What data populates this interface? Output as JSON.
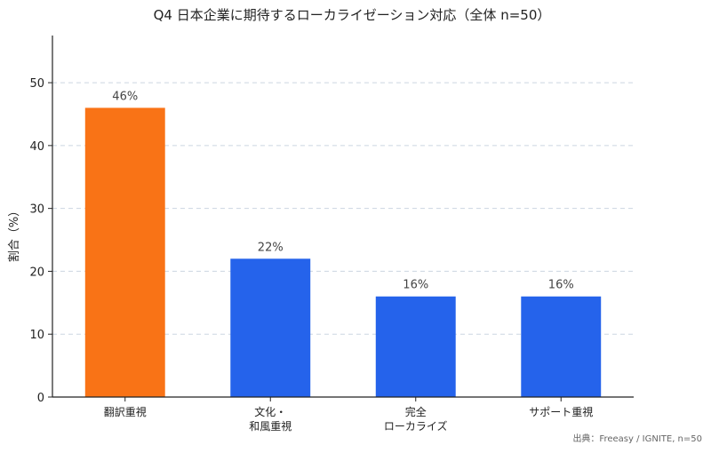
{
  "chart_data": {
    "type": "bar",
    "title": "Q4 日本企業に期待するローカライゼーション対応（全体 n=50）",
    "xlabel": "",
    "ylabel": "割合（%）",
    "categories": [
      [
        "翻訳重視"
      ],
      [
        "文化・",
        "和風重視"
      ],
      [
        "完全",
        "ローカライズ"
      ],
      [
        "サポート重視"
      ]
    ],
    "values": [
      46,
      22,
      16,
      16
    ],
    "data_labels": [
      "46%",
      "22%",
      "16%",
      "16%"
    ],
    "bar_colors": [
      "#f97316",
      "#2563eb",
      "#2563eb",
      "#2563eb"
    ],
    "yticks": [
      0,
      10,
      20,
      30,
      40,
      50
    ],
    "ylim": [
      0,
      57.5
    ],
    "grid": "horizontal-dashed"
  },
  "source_note": "出典：Freeasy / IGNITE, n=50"
}
